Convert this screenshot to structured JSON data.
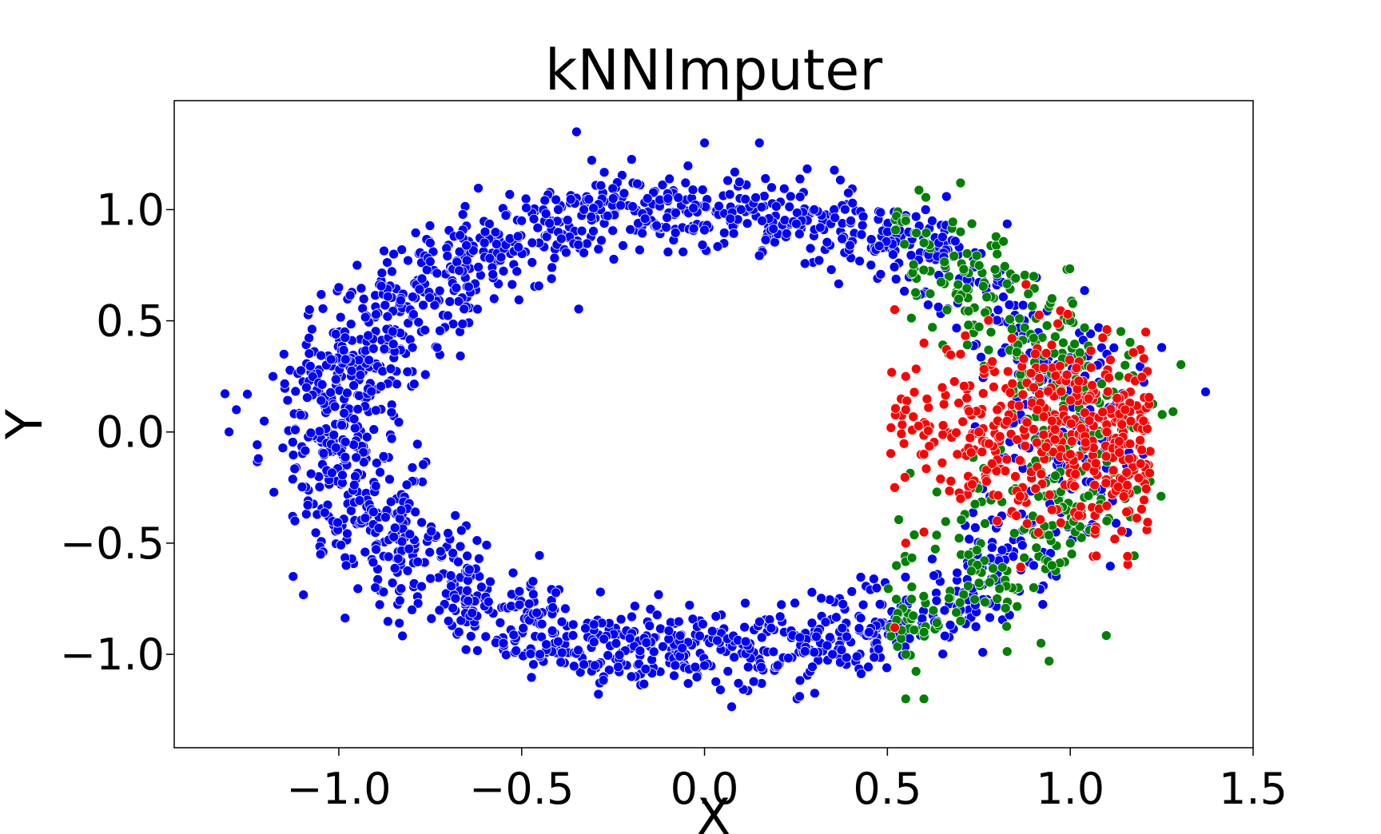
{
  "chart_data": {
    "type": "scatter",
    "title": "kNNImputer",
    "xlabel": "X",
    "ylabel": "Y",
    "xlim": [
      -1.45,
      1.5
    ],
    "ylim": [
      -1.42,
      1.49
    ],
    "xticks": [
      -1.0,
      -0.5,
      0.0,
      0.5,
      1.0,
      1.5
    ],
    "xtick_labels": [
      "−1.0",
      "−0.5",
      "0.0",
      "0.5",
      "1.0",
      "1.5"
    ],
    "yticks": [
      -1.0,
      -0.5,
      0.0,
      0.5,
      1.0
    ],
    "ytick_labels": [
      "−1.0",
      "−0.5",
      "0.0",
      "0.5",
      "1.0"
    ],
    "grid": false,
    "legend": "none",
    "series": [
      {
        "color": "#0000ff",
        "description_of_shape": "noisy elliptical ring, center (0,0), x-radius ~1.0, y-radius ~1.0",
        "points": [
          [
            -1.3,
            0.0
          ],
          [
            -1.28,
            0.1
          ],
          [
            -1.25,
            0.17
          ],
          [
            -1.22,
            -0.12
          ],
          [
            -1.18,
            0.25
          ],
          [
            -1.15,
            0.35
          ],
          [
            -1.12,
            -0.4
          ],
          [
            -1.08,
            0.55
          ],
          [
            -1.05,
            -0.55
          ],
          [
            -1.0,
            0.65
          ],
          [
            -0.98,
            -0.6
          ],
          [
            -0.95,
            0.75
          ],
          [
            -0.9,
            -0.7
          ],
          [
            -0.85,
            0.8
          ],
          [
            -0.8,
            -0.8
          ],
          [
            -0.75,
            0.85
          ],
          [
            -0.7,
            -0.85
          ],
          [
            -0.6,
            0.9
          ],
          [
            -0.55,
            -0.95
          ],
          [
            -0.5,
            0.95
          ],
          [
            -0.45,
            -1.0
          ],
          [
            -0.4,
            1.0
          ],
          [
            -0.35,
            1.35
          ],
          [
            -0.3,
            -1.05
          ],
          [
            -0.25,
            1.05
          ],
          [
            -0.2,
            -1.1
          ],
          [
            -0.1,
            1.05
          ],
          [
            0.0,
            1.3
          ],
          [
            0.0,
            -1.05
          ],
          [
            0.1,
            1.0
          ],
          [
            0.15,
            1.3
          ],
          [
            0.2,
            -1.05
          ],
          [
            0.3,
            1.0
          ],
          [
            0.35,
            -1.0
          ],
          [
            0.4,
            0.95
          ],
          [
            0.45,
            -0.9
          ],
          [
            0.5,
            0.9
          ],
          [
            0.55,
            -0.85
          ],
          [
            0.6,
            0.85
          ],
          [
            0.7,
            -0.8
          ],
          [
            0.8,
            0.7
          ],
          [
            0.9,
            -0.6
          ],
          [
            1.0,
            0.5
          ],
          [
            1.05,
            -0.45
          ],
          [
            1.1,
            0.35
          ],
          [
            1.15,
            -0.25
          ],
          [
            1.2,
            0.1
          ],
          [
            1.25,
            0.38
          ],
          [
            1.37,
            0.18
          ],
          [
            1.2,
            -0.1
          ]
        ]
      },
      {
        "color": "#008000",
        "description_of_shape": "imputed points along right part of ring, x from ~0.5 to ~1.25",
        "points": [
          [
            0.55,
            0.95
          ],
          [
            0.6,
            0.85
          ],
          [
            0.7,
            0.9
          ],
          [
            0.7,
            1.12
          ],
          [
            0.8,
            0.8
          ],
          [
            0.9,
            0.7
          ],
          [
            0.95,
            0.6
          ],
          [
            1.0,
            0.5
          ],
          [
            1.1,
            0.45
          ],
          [
            1.15,
            0.3
          ],
          [
            1.15,
            -0.3
          ],
          [
            1.1,
            -0.4
          ],
          [
            1.0,
            -0.5
          ],
          [
            0.95,
            -0.6
          ],
          [
            0.9,
            -0.7
          ],
          [
            0.8,
            -0.75
          ],
          [
            0.7,
            -0.85
          ],
          [
            0.6,
            -0.9
          ],
          [
            0.55,
            -1.0
          ],
          [
            0.6,
            -1.2
          ],
          [
            0.92,
            -0.95
          ],
          [
            0.55,
            -1.2
          ]
        ]
      },
      {
        "color": "#ff0000",
        "description_of_shape": "imputed points inside right part of ring, x from ~0.5 to ~1.25",
        "points": [
          [
            0.52,
            0.55
          ],
          [
            0.55,
            0.25
          ],
          [
            0.55,
            0.1
          ],
          [
            0.6,
            0.4
          ],
          [
            0.6,
            -0.1
          ],
          [
            0.65,
            0.2
          ],
          [
            0.7,
            0.35
          ],
          [
            0.75,
            0.0
          ],
          [
            0.8,
            0.1
          ],
          [
            0.85,
            -0.2
          ],
          [
            0.9,
            0.2
          ],
          [
            0.95,
            0.05
          ],
          [
            1.0,
            -0.1
          ],
          [
            1.05,
            0.15
          ],
          [
            1.1,
            0.0
          ],
          [
            1.15,
            0.1
          ],
          [
            1.2,
            0.05
          ],
          [
            0.52,
            -0.25
          ],
          [
            0.55,
            -0.5
          ],
          [
            0.6,
            -0.45
          ],
          [
            0.7,
            -0.3
          ],
          [
            0.8,
            -0.4
          ],
          [
            0.95,
            -0.35
          ],
          [
            0.52,
            -0.88
          ]
        ]
      }
    ]
  }
}
